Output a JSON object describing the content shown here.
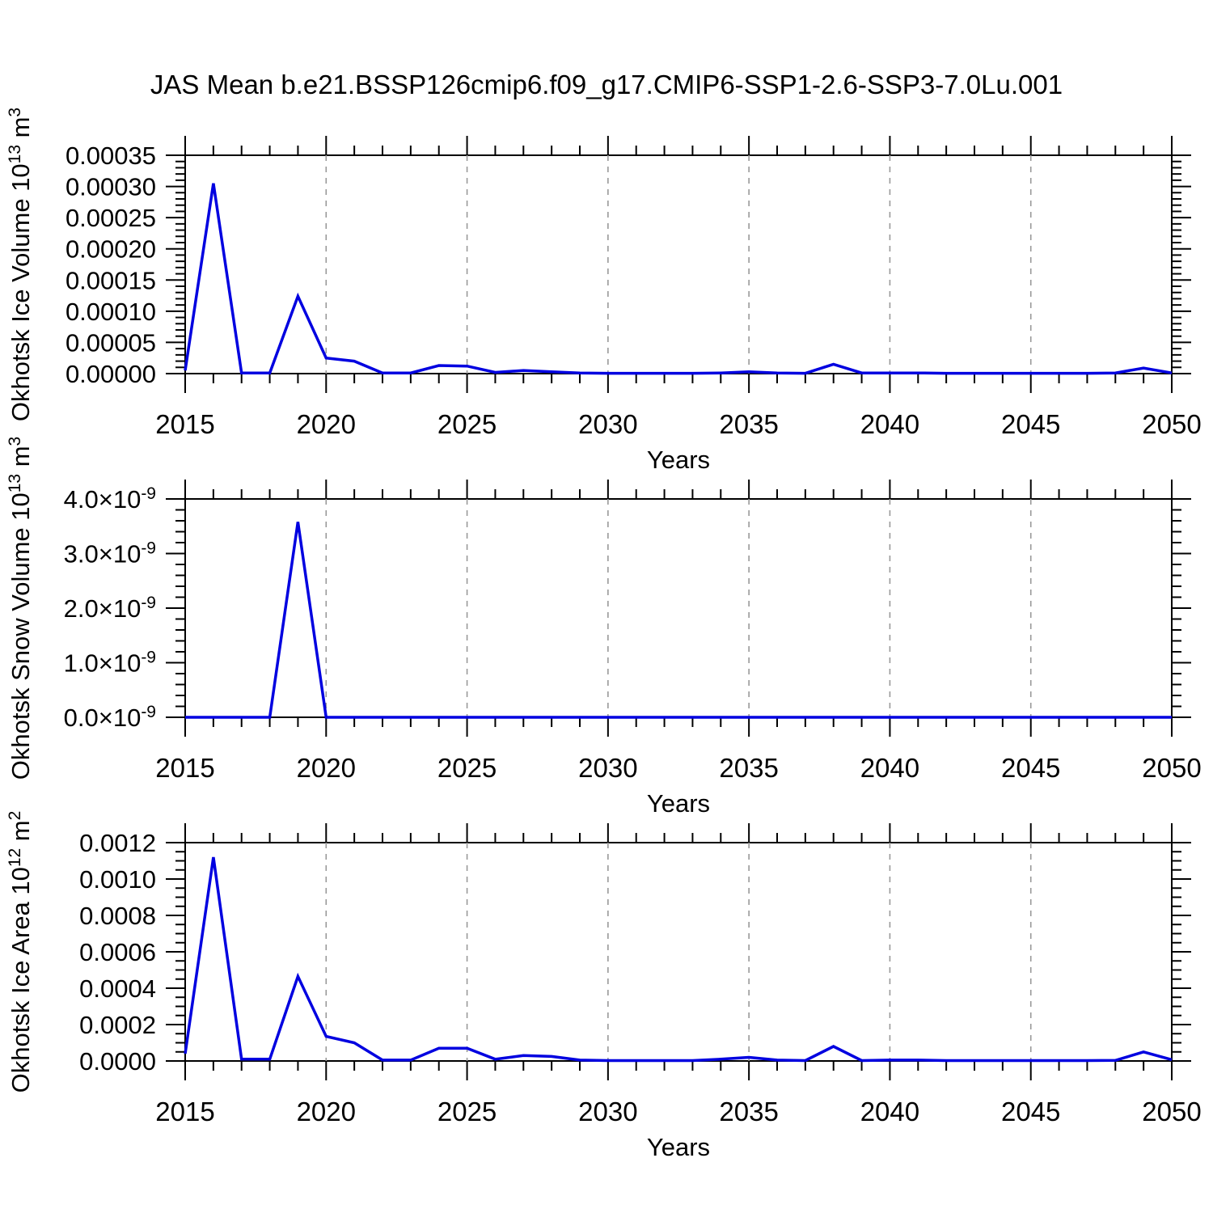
{
  "page": {
    "title": "JAS Mean b.e21.BSSP126cmip6.f09_g17.CMIP6-SSP1-2.6-SSP3-7.0Lu.001",
    "background_color": "#ffffff"
  },
  "style": {
    "line_color": "#0000e0",
    "axis_color": "#000000",
    "grid_color": "#999999",
    "text_color": "#000000"
  },
  "chart_data": [
    {
      "type": "line",
      "name": "okhotsk-ice-volume",
      "ylabel_parts": [
        {
          "t": "Okhotsk Ice Volume 10"
        },
        {
          "t": "13",
          "sup": true
        },
        {
          "t": " m"
        },
        {
          "t": "3",
          "sup": true
        }
      ],
      "xlabel": "Years",
      "x": [
        2015,
        2016,
        2017,
        2018,
        2019,
        2020,
        2021,
        2022,
        2023,
        2024,
        2025,
        2026,
        2027,
        2028,
        2029,
        2030,
        2031,
        2032,
        2033,
        2034,
        2035,
        2036,
        2037,
        2038,
        2039,
        2040,
        2041,
        2042,
        2043,
        2044,
        2045,
        2046,
        2047,
        2048,
        2049,
        2050
      ],
      "values": [
        5e-06,
        0.000305,
        1e-06,
        1e-06,
        0.000124,
        2.5e-05,
        2e-05,
        1e-06,
        1e-06,
        1.3e-05,
        1.2e-05,
        2e-06,
        5e-06,
        3e-06,
        1e-06,
        5e-07,
        5e-07,
        5e-07,
        5e-07,
        1e-06,
        3e-06,
        1e-06,
        5e-07,
        1.5e-05,
        1e-06,
        1e-06,
        1e-06,
        5e-07,
        5e-07,
        5e-07,
        5e-07,
        5e-07,
        5e-07,
        1e-06,
        9e-06,
        1e-06
      ],
      "xlim": [
        2015,
        2050
      ],
      "ylim": [
        0,
        0.00035
      ],
      "ytick_values": [
        0,
        5e-05,
        0.0001,
        0.00015,
        0.0002,
        0.00025,
        0.0003,
        0.00035
      ],
      "ytick_labels": [
        [
          {
            "t": "0.00000"
          }
        ],
        [
          {
            "t": "0.00005"
          }
        ],
        [
          {
            "t": "0.00010"
          }
        ],
        [
          {
            "t": "0.00015"
          }
        ],
        [
          {
            "t": "0.00020"
          }
        ],
        [
          {
            "t": "0.00025"
          }
        ],
        [
          {
            "t": "0.00030"
          }
        ],
        [
          {
            "t": "0.00035"
          }
        ]
      ],
      "yminor_per_major": 4,
      "xtick_major": [
        2015,
        2020,
        2025,
        2030,
        2035,
        2040,
        2045,
        2050
      ],
      "xtick_labels": [
        "2015",
        "2020",
        "2025",
        "2030",
        "2035",
        "2040",
        "2045",
        "2050"
      ],
      "xminor_step": 1,
      "grid_x": [
        2020,
        2025,
        2030,
        2035,
        2040,
        2045
      ],
      "grid_on": true
    },
    {
      "type": "line",
      "name": "okhotsk-snow-volume",
      "ylabel_parts": [
        {
          "t": "Okhotsk Snow Volume 10"
        },
        {
          "t": "13",
          "sup": true
        },
        {
          "t": " m"
        },
        {
          "t": "3",
          "sup": true
        }
      ],
      "xlabel": "Years",
      "x": [
        2015,
        2016,
        2017,
        2018,
        2019,
        2020,
        2021,
        2022,
        2023,
        2024,
        2025,
        2026,
        2027,
        2028,
        2029,
        2030,
        2031,
        2032,
        2033,
        2034,
        2035,
        2036,
        2037,
        2038,
        2039,
        2040,
        2041,
        2042,
        2043,
        2044,
        2045,
        2046,
        2047,
        2048,
        2049,
        2050
      ],
      "values": [
        0,
        0,
        0,
        0,
        3.58e-09,
        0,
        0,
        0,
        0,
        0,
        0,
        0,
        0,
        0,
        0,
        0,
        0,
        0,
        0,
        0,
        0,
        0,
        0,
        0,
        0,
        0,
        0,
        0,
        0,
        0,
        0,
        0,
        0,
        0,
        0,
        0
      ],
      "xlim": [
        2015,
        2050
      ],
      "ylim": [
        0,
        4e-09
      ],
      "ytick_values": [
        0,
        1e-09,
        2e-09,
        3e-09,
        4e-09
      ],
      "ytick_labels": [
        [
          {
            "t": "0.0×10"
          },
          {
            "t": "-9",
            "sup": true
          }
        ],
        [
          {
            "t": "1.0×10"
          },
          {
            "t": "-9",
            "sup": true
          }
        ],
        [
          {
            "t": "2.0×10"
          },
          {
            "t": "-9",
            "sup": true
          }
        ],
        [
          {
            "t": "3.0×10"
          },
          {
            "t": "-9",
            "sup": true
          }
        ],
        [
          {
            "t": "4.0×10"
          },
          {
            "t": "-9",
            "sup": true
          }
        ]
      ],
      "yminor_per_major": 4,
      "xtick_major": [
        2015,
        2020,
        2025,
        2030,
        2035,
        2040,
        2045,
        2050
      ],
      "xtick_labels": [
        "2015",
        "2020",
        "2025",
        "2030",
        "2035",
        "2040",
        "2045",
        "2050"
      ],
      "xminor_step": 1,
      "grid_x": [
        2020,
        2025,
        2030,
        2035,
        2040,
        2045
      ],
      "grid_on": true
    },
    {
      "type": "line",
      "name": "okhotsk-ice-area",
      "ylabel_parts": [
        {
          "t": "Okhotsk Ice Area 10"
        },
        {
          "t": "12",
          "sup": true
        },
        {
          "t": " m"
        },
        {
          "t": "2",
          "sup": true
        }
      ],
      "xlabel": "Years",
      "x": [
        2015,
        2016,
        2017,
        2018,
        2019,
        2020,
        2021,
        2022,
        2023,
        2024,
        2025,
        2026,
        2027,
        2028,
        2029,
        2030,
        2031,
        2032,
        2033,
        2034,
        2035,
        2036,
        2037,
        2038,
        2039,
        2040,
        2041,
        2042,
        2043,
        2044,
        2045,
        2046,
        2047,
        2048,
        2049,
        2050
      ],
      "values": [
        4e-05,
        0.00112,
        1e-05,
        1e-05,
        0.000465,
        0.000135,
        0.0001,
        5e-06,
        5e-06,
        7e-05,
        7e-05,
        1e-05,
        3e-05,
        2.5e-05,
        5e-06,
        2e-06,
        2e-06,
        2e-06,
        2e-06,
        1e-05,
        2e-05,
        5e-06,
        2e-06,
        8e-05,
        2e-06,
        5e-06,
        5e-06,
        2e-06,
        2e-06,
        2e-06,
        2e-06,
        2e-06,
        2e-06,
        3e-06,
        5e-05,
        7e-06
      ],
      "xlim": [
        2015,
        2050
      ],
      "ylim": [
        0,
        0.0012
      ],
      "ytick_values": [
        0,
        0.0002,
        0.0004,
        0.0006,
        0.0008,
        0.001,
        0.0012
      ],
      "ytick_labels": [
        [
          {
            "t": "0.0000"
          }
        ],
        [
          {
            "t": "0.0002"
          }
        ],
        [
          {
            "t": "0.0004"
          }
        ],
        [
          {
            "t": "0.0006"
          }
        ],
        [
          {
            "t": "0.0008"
          }
        ],
        [
          {
            "t": "0.0010"
          }
        ],
        [
          {
            "t": "0.0012"
          }
        ]
      ],
      "yminor_per_major": 3,
      "xtick_major": [
        2015,
        2020,
        2025,
        2030,
        2035,
        2040,
        2045,
        2050
      ],
      "xtick_labels": [
        "2015",
        "2020",
        "2025",
        "2030",
        "2035",
        "2040",
        "2045",
        "2050"
      ],
      "xminor_step": 1,
      "grid_x": [
        2020,
        2025,
        2030,
        2035,
        2040,
        2045
      ],
      "grid_on": true
    }
  ]
}
